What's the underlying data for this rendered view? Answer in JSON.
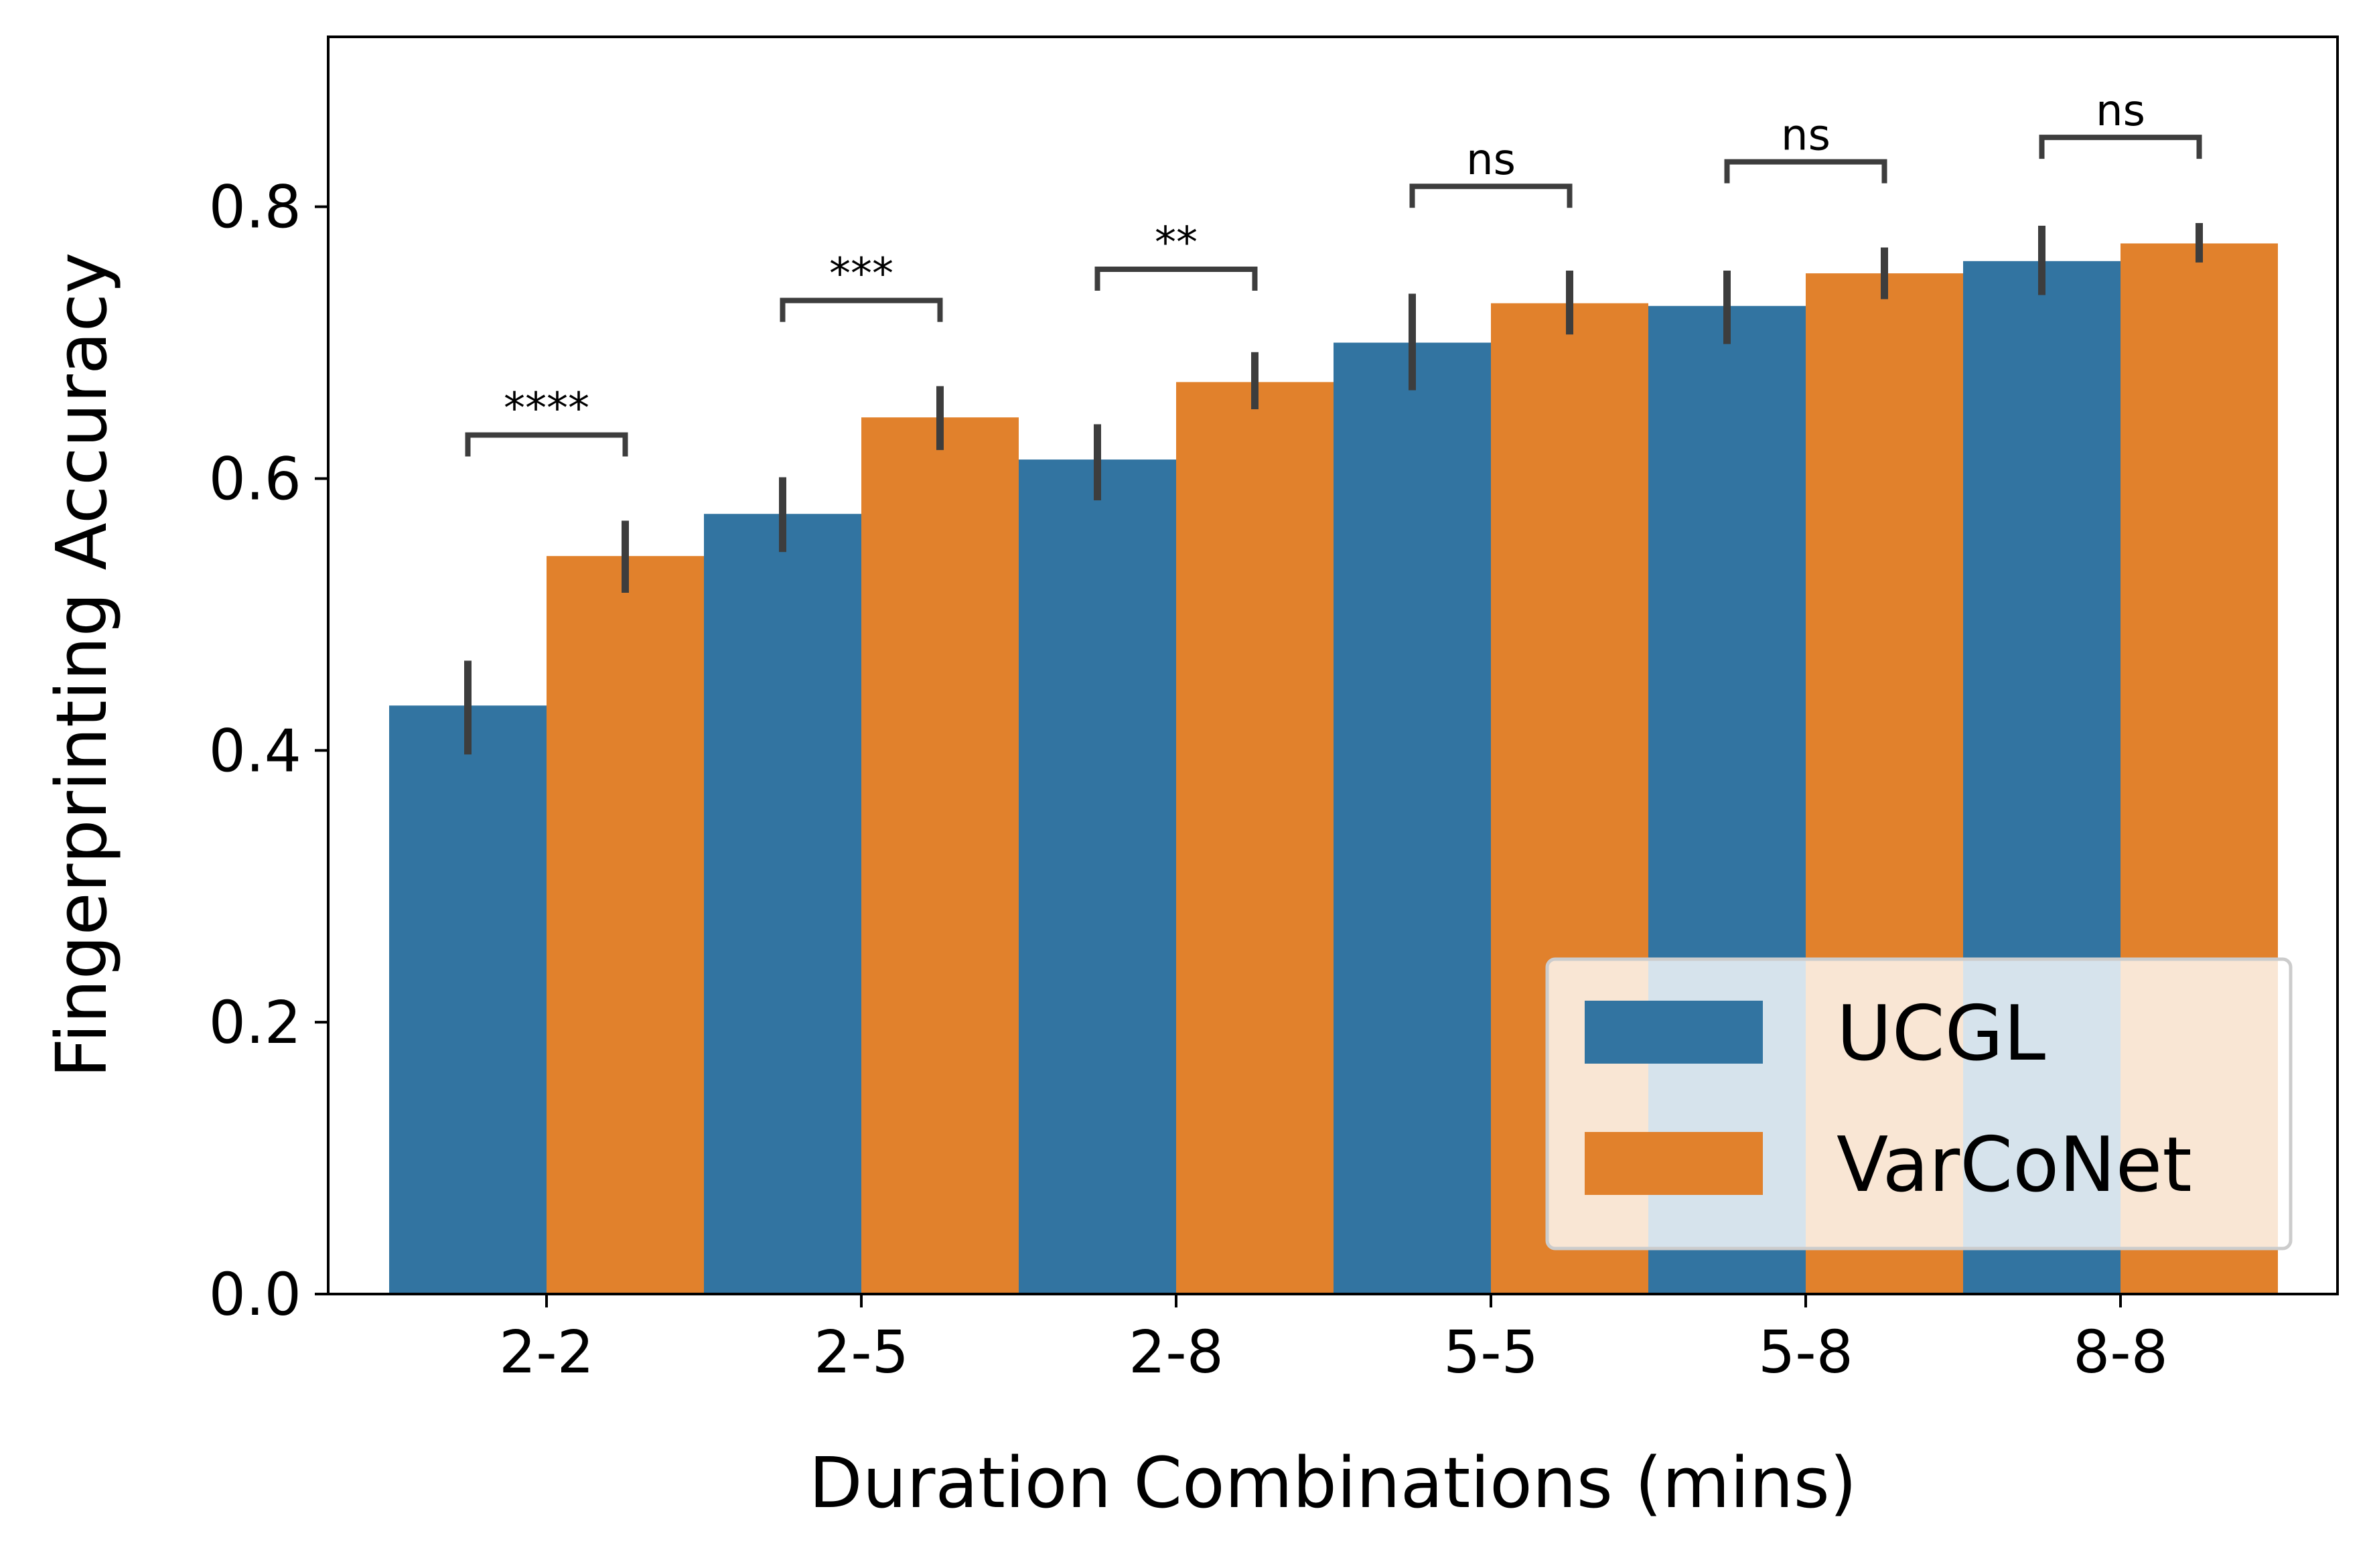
{
  "chart_data": {
    "type": "bar",
    "title": "",
    "xlabel": "Duration Combinations (mins)",
    "ylabel": "Fingerprinting Accuracy",
    "ylim": [
      0,
      0.925
    ],
    "yticks": [
      0.0,
      0.2,
      0.4,
      0.6,
      0.8
    ],
    "ytick_labels": [
      "0.0",
      "0.2",
      "0.4",
      "0.6",
      "0.8"
    ],
    "grid": false,
    "legend_position": "bottom-right",
    "categories": [
      "2-2",
      "2-5",
      "2-8",
      "5-5",
      "5-8",
      "8-8"
    ],
    "series": [
      {
        "name": "UCGL",
        "color": "#3274a1",
        "values": [
          0.433,
          0.574,
          0.614,
          0.7,
          0.727,
          0.76
        ],
        "ci_low": [
          0.397,
          0.546,
          0.584,
          0.665,
          0.699,
          0.735
        ],
        "ci_high": [
          0.466,
          0.601,
          0.64,
          0.736,
          0.753,
          0.786
        ]
      },
      {
        "name": "VarCoNet",
        "color": "#e1812c",
        "values": [
          0.543,
          0.645,
          0.671,
          0.729,
          0.751,
          0.773
        ],
        "ci_low": [
          0.516,
          0.621,
          0.651,
          0.706,
          0.732,
          0.759
        ],
        "ci_high": [
          0.569,
          0.668,
          0.693,
          0.753,
          0.77,
          0.788
        ]
      }
    ],
    "annotations": [
      {
        "category": "2-2",
        "text": "****",
        "y": 0.632
      },
      {
        "category": "2-5",
        "text": "***",
        "y": 0.731
      },
      {
        "category": "2-8",
        "text": "**",
        "y": 0.754
      },
      {
        "category": "5-5",
        "text": "ns",
        "y": 0.815
      },
      {
        "category": "5-8",
        "text": "ns",
        "y": 0.833
      },
      {
        "category": "8-8",
        "text": "ns",
        "y": 0.851
      }
    ]
  }
}
